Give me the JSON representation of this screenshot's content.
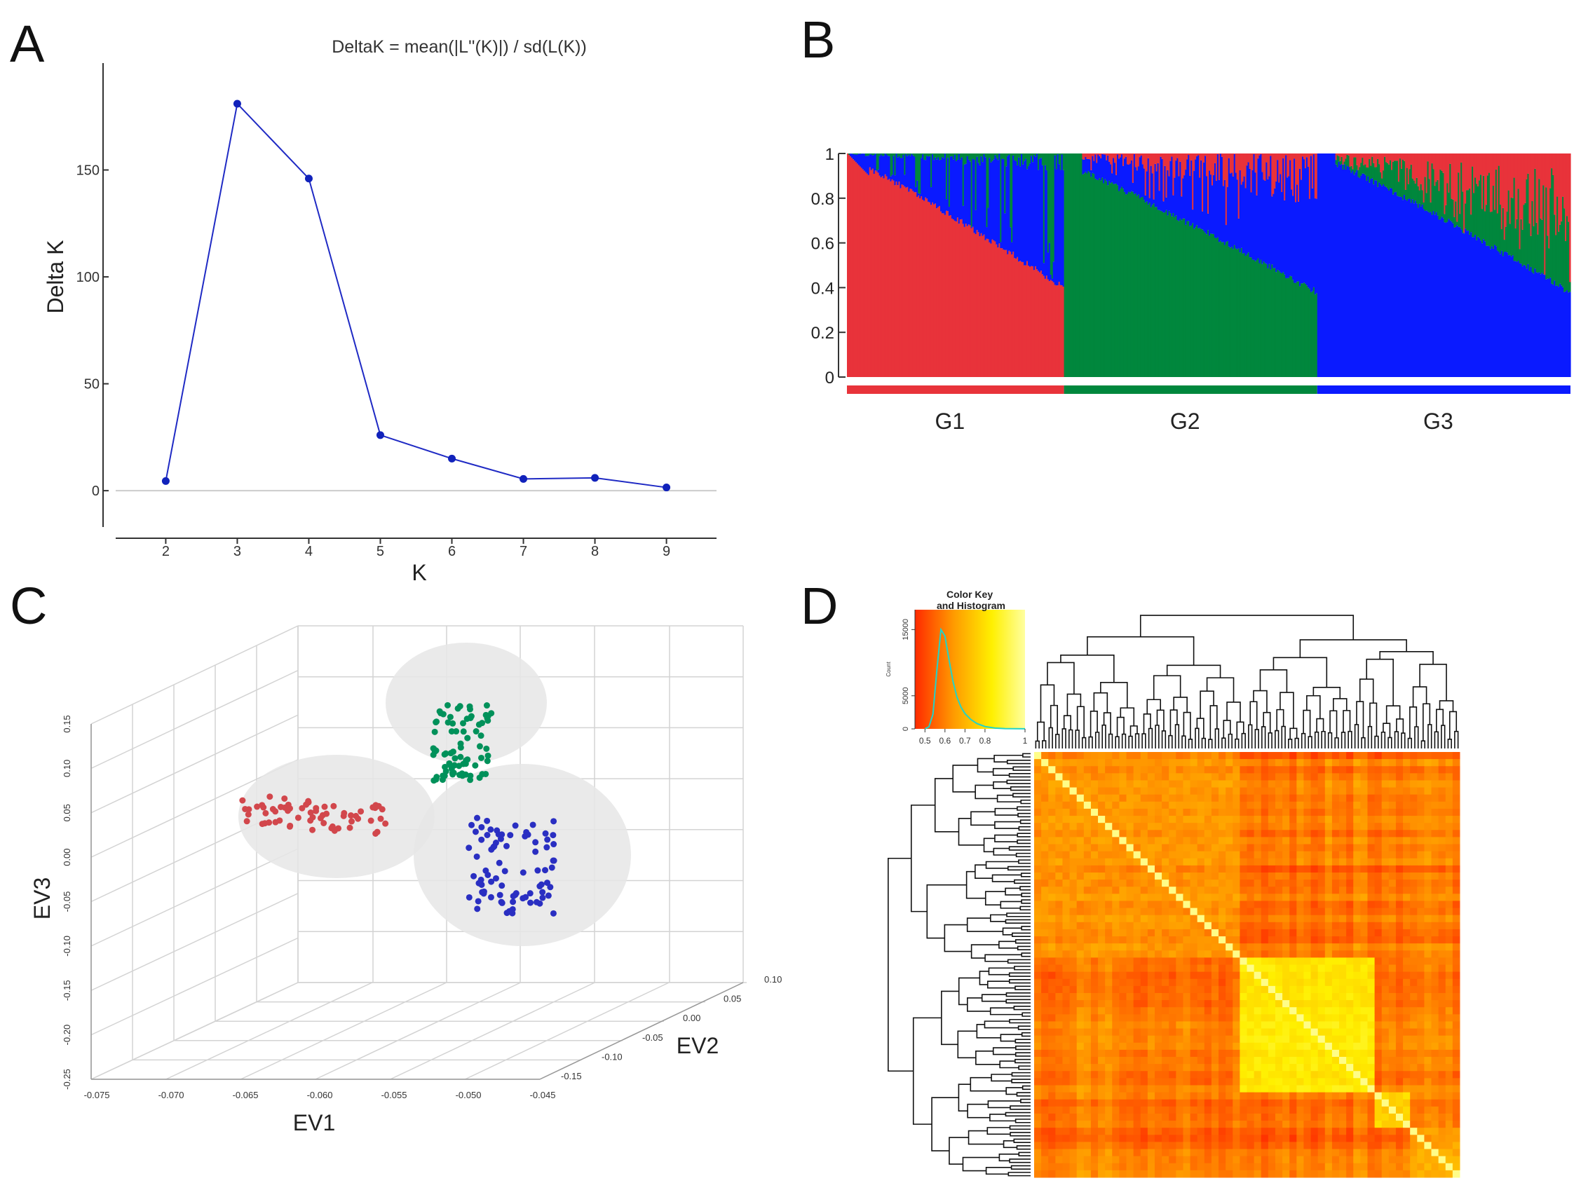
{
  "panels": {
    "a": {
      "letter": "A"
    },
    "b": {
      "letter": "B"
    },
    "c": {
      "letter": "C"
    },
    "d": {
      "letter": "D"
    }
  },
  "chart_data": [
    {
      "panel": "A",
      "type": "line",
      "title": "DeltaK = mean(|L''(K)|) / sd(L(K))",
      "xlabel": "K",
      "ylabel": "Delta K",
      "x": [
        2,
        3,
        4,
        5,
        6,
        7,
        8,
        9
      ],
      "xticks": [
        "2",
        "3",
        "4",
        "5",
        "6",
        "7",
        "8",
        "9"
      ],
      "series": [
        {
          "values": [
            4.5,
            181,
            146,
            26,
            15,
            5.5,
            6,
            1.5
          ]
        }
      ],
      "yticks": [
        "0",
        "50",
        "100",
        "150"
      ],
      "ytick_values": [
        0,
        50,
        100,
        150
      ],
      "xlim": [
        1.3,
        9.7
      ],
      "ylim": [
        -17,
        200
      ],
      "grid": false,
      "color": "#1f2ac4"
    },
    {
      "panel": "B",
      "type": "bar",
      "subtype": "stacked-admixture",
      "yticks": [
        "0",
        "0.2",
        "0.4",
        "0.6",
        "0.8",
        "1"
      ],
      "ytick_values": [
        0,
        0.2,
        0.4,
        0.6,
        0.8,
        1
      ],
      "ylim": [
        0,
        1
      ],
      "groups": [
        {
          "label": "G1",
          "color": "#e8333a",
          "fraction": 0.3,
          "top": 0.98,
          "bottom": 0.4
        },
        {
          "label": "G2",
          "color": "#00873d",
          "fraction": 0.35,
          "top": 0.95,
          "bottom": 0.38
        },
        {
          "label": "G3",
          "color": "#0a1aff",
          "fraction": 0.35,
          "top": 0.99,
          "bottom": 0.38
        }
      ]
    },
    {
      "panel": "C",
      "type": "scatter",
      "subtype": "3d",
      "xlabel": "EV1",
      "ylabel": "EV2",
      "zlabel": "EV3",
      "xticks": [
        "-0.075",
        "-0.070",
        "-0.065",
        "-0.060",
        "-0.055",
        "-0.050",
        "-0.045"
      ],
      "yticks": [
        "-0.15",
        "-0.10",
        "-0.05",
        "0.00",
        "0.05",
        "0.10"
      ],
      "zticks": [
        "-0.25",
        "-0.20",
        "-0.15",
        "-0.10",
        "-0.05",
        "0.00",
        "0.05",
        "0.10",
        "0.15"
      ],
      "clusters": [
        {
          "color": "#d2474c",
          "n": 64
        },
        {
          "color": "#00915a",
          "n": 80
        },
        {
          "color": "#2a2fc2",
          "n": 82
        }
      ]
    },
    {
      "panel": "D",
      "type": "heatmap",
      "key_title": "Color Key\nand Histogram",
      "key_xticks": [
        "0.5",
        "0.6",
        "0.7",
        "0.8",
        "1"
      ],
      "key_xtick_values": [
        0.5,
        0.6,
        0.7,
        0.8,
        1
      ],
      "key_xlim": [
        0.45,
        1
      ],
      "key_yticks": [
        "0",
        "5000",
        "15000"
      ],
      "key_ytick_values": [
        0,
        5000,
        15000
      ],
      "key_ylim": [
        0,
        18000
      ],
      "key_ylabel": "Count",
      "histogram": [
        [
          0.5,
          12
        ],
        [
          0.52,
          300
        ],
        [
          0.54,
          2200
        ],
        [
          0.56,
          9000
        ],
        [
          0.58,
          15000
        ],
        [
          0.6,
          14000
        ],
        [
          0.62,
          10500
        ],
        [
          0.64,
          7200
        ],
        [
          0.66,
          4800
        ],
        [
          0.68,
          3300
        ],
        [
          0.7,
          2300
        ],
        [
          0.73,
          1400
        ],
        [
          0.76,
          800
        ],
        [
          0.8,
          350
        ],
        [
          0.85,
          120
        ],
        [
          0.9,
          40
        ],
        [
          1.0,
          10
        ]
      ],
      "colormap": [
        "#ff2a00",
        "#ff9a00",
        "#fff000",
        "#ffffa0"
      ],
      "blocks": [
        {
          "start": 0.0,
          "end": 0.48,
          "value": 0.62
        },
        {
          "start": 0.48,
          "end": 0.8,
          "value": 0.8
        },
        {
          "start": 0.8,
          "end": 0.88,
          "value": 0.75
        },
        {
          "start": 0.88,
          "end": 1.0,
          "value": 0.66
        }
      ]
    }
  ]
}
